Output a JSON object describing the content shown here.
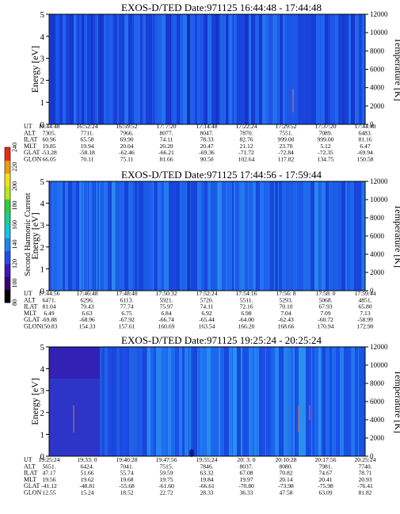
{
  "colorbar": {
    "label": "Second Harmonic Current",
    "ticks": [
      "80",
      "100",
      "120",
      "140",
      "160",
      "180",
      "200",
      "220",
      "240"
    ],
    "colors": [
      "#000000",
      "#3a0078",
      "#3c17c2",
      "#1f4ef0",
      "#1a86f2",
      "#12c4e6",
      "#16d090",
      "#2ed03a",
      "#b8e814",
      "#f0e010",
      "#f39a10",
      "#ef2a10"
    ]
  },
  "chart_data": [
    {
      "type": "heatmap",
      "title": "EXOS-D/TED   Date:971125   16:44:48 - 17:44:48",
      "ylabel": "Energy [eV]",
      "y2label": "Temperature [K]",
      "yticks": [
        "0",
        "1",
        "2",
        "3",
        "4",
        "5"
      ],
      "ylim": [
        0,
        5
      ],
      "y2ticks": [
        "0",
        "2000",
        "4000",
        "6000",
        "8000",
        "10000",
        "12000"
      ],
      "y2lim": [
        0,
        12000
      ],
      "row_labels": [
        "UT",
        "ALT",
        "ILAT",
        "MLT",
        "GLAT",
        "GLON"
      ],
      "columns": [
        [
          "16:44:48",
          "16:52:24",
          "16:59:52",
          "17: 7:20",
          "17:14:48",
          "17:22:24",
          "17:29:52",
          "17:37:20",
          "17:44:48"
        ],
        [
          "7305.",
          "7711.",
          "7966.",
          "8077.",
          "8047.",
          "7870.",
          "7551.",
          "7089.",
          "6483."
        ],
        [
          "60.96",
          "65.58",
          "69.90",
          "74.11",
          "78.33",
          "82.76",
          "999.00",
          "999.00",
          "81.16"
        ],
        [
          "19.85",
          "19.94",
          "20.04",
          "20.20",
          "20.47",
          "21.12",
          "23.70",
          "5.12",
          "6.47"
        ],
        [
          "-53.28",
          "-58.18",
          "-62.46",
          "-66.21",
          "-69.36",
          "-71.72",
          "-72.84",
          "-72.35",
          "-69.94"
        ],
        [
          "66.05",
          "70.11",
          "75.11",
          "81.66",
          "90.50",
          "102.64",
          "117.82",
          "134.75",
          "150.58"
        ]
      ]
    },
    {
      "type": "heatmap",
      "title": "EXOS-D/TED   Date:971125   17:44:56 - 17:59:44",
      "ylabel": "Energy [eV]",
      "y2label": "Temperature [K]",
      "yticks": [
        "0",
        "1",
        "2",
        "3",
        "4",
        "5"
      ],
      "ylim": [
        0,
        5
      ],
      "y2ticks": [
        "0",
        "2000",
        "4000",
        "6000",
        "8000",
        "10000",
        "12000"
      ],
      "y2lim": [
        0,
        12000
      ],
      "row_labels": [
        "UT",
        "ALT",
        "ILAT",
        "MLT",
        "GLAT",
        "GLON"
      ],
      "columns": [
        [
          "17:44:56",
          "17:46:48",
          "17:48:40",
          "17:50:32",
          "17:52:24",
          "17:54:16",
          "17:56: 8",
          "17:58: 0",
          "17:59:44"
        ],
        [
          "6471.",
          "6296.",
          "6113.",
          "5921.",
          "5720.",
          "5511.",
          "5293.",
          "5068.",
          "4851."
        ],
        [
          "81.04",
          "79.43",
          "77.74",
          "75.97",
          "74.11",
          "72.16",
          "70.10",
          "67.93",
          "65.80"
        ],
        [
          "6.49",
          "6.63",
          "6.75",
          "6.84",
          "6.92",
          "6.98",
          "7.04",
          "7.09",
          "7.13"
        ],
        [
          "-69.88",
          "-68.96",
          "-67.92",
          "-66.74",
          "-65.44",
          "-64.00",
          "-62.43",
          "-60.72",
          "-58.99"
        ],
        [
          "150.83",
          "154.33",
          "157.61",
          "160.69",
          "163.54",
          "166.20",
          "168.66",
          "170.94",
          "172.90"
        ]
      ]
    },
    {
      "type": "heatmap",
      "title": "EXOS-D/TED   Date:971125   19:25:24 - 20:25:24",
      "ylabel": "Energy [eV]",
      "y2label": "Temperature [K]",
      "yticks": [
        "0",
        "1",
        "2",
        "3",
        "4",
        "5"
      ],
      "ylim": [
        0,
        5
      ],
      "y2ticks": [
        "0",
        "2000",
        "4000",
        "6000",
        "8000",
        "10000",
        "12000"
      ],
      "y2lim": [
        0,
        12000
      ],
      "row_labels": [
        "UT",
        "ALT",
        "ILAT",
        "MLT",
        "GLAT",
        "GLON"
      ],
      "columns": [
        [
          "19:25:24",
          "19:33: 0",
          "19:40:28",
          "19:47:56",
          "19:55:24",
          "20: 3: 0",
          "20:10:28",
          "20:17:56",
          "20:25:24"
        ],
        [
          "5651.",
          "6424.",
          "7041.",
          "7515.",
          "7846.",
          "8037.",
          "8080.",
          "7981.",
          "7740."
        ],
        [
          "47.17",
          "51.66",
          "55.74",
          "59.59",
          "63.32",
          "67.08",
          "70.82",
          "74.67",
          "78.71"
        ],
        [
          "19.56",
          "19.62",
          "19.68",
          "19.75",
          "19.84",
          "19.97",
          "20.14",
          "20.41",
          "20.93"
        ],
        [
          "-41.12",
          "-48.81",
          "-55.68",
          "-61.60",
          "-66.61",
          "-70.80",
          "-73.98",
          "-75.98",
          "-76.41"
        ],
        [
          "12.55",
          "15.24",
          "18.52",
          "22.72",
          "28.33",
          "36.33",
          "47.58",
          "63.09",
          "81.82"
        ]
      ]
    }
  ]
}
